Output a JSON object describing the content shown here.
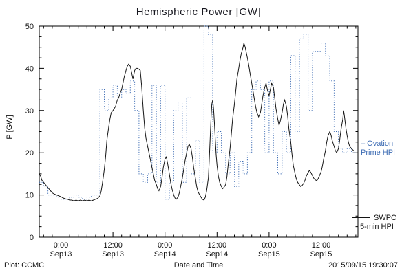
{
  "title": "Hemispheric Power [GW]",
  "footer": {
    "left": "Plot: CCMC",
    "timestamp": "2015/09/15 19:30:07"
  },
  "legend": {
    "ovation": {
      "line1": "– Ovation",
      "line2": "Prime HPI",
      "color": "#3d6cb4"
    },
    "swpc": {
      "line1": "SWPC",
      "line2": "5-min HPI",
      "color": "#141414"
    }
  },
  "chart_data": {
    "type": "line",
    "title": "Hemispheric Power [GW]",
    "xlabel": "Date and Time",
    "ylabel": "P [GW]",
    "x_unit": "hours since 2015-09-13 00:00 UT",
    "xlim": [
      -5,
      68.5
    ],
    "ylim": [
      0,
      50
    ],
    "yticks": [
      0,
      10,
      20,
      30,
      40,
      50
    ],
    "x_minor_step": 2,
    "y_minor_step": 2.5,
    "grid": false,
    "legend_position": "right",
    "xticks": [
      {
        "t": 0,
        "time": "0:00",
        "date": "Sep13"
      },
      {
        "t": 12,
        "time": "12:00",
        "date": "Sep13"
      },
      {
        "t": 24,
        "time": "0:00",
        "date": "Sep14"
      },
      {
        "t": 36,
        "time": "12:00",
        "date": "Sep14"
      },
      {
        "t": 48,
        "time": "0:00",
        "date": "Sep15"
      },
      {
        "t": 60,
        "time": "12:00",
        "date": "Sep15"
      }
    ],
    "series": [
      {
        "name": "Ovation Prime HPI",
        "color": "#3d6cb4",
        "line_style": "dotted",
        "step": true,
        "points": [
          [
            -5,
            13
          ],
          [
            -4,
            12
          ],
          [
            -3,
            10
          ],
          [
            -2,
            10
          ],
          [
            -1,
            9.5
          ],
          [
            0,
            9
          ],
          [
            1,
            9
          ],
          [
            2,
            9.5
          ],
          [
            3,
            10
          ],
          [
            4,
            9.5
          ],
          [
            5,
            9
          ],
          [
            6,
            9.5
          ],
          [
            7,
            10
          ],
          [
            8,
            10
          ],
          [
            9,
            35
          ],
          [
            10,
            30
          ],
          [
            11,
            33
          ],
          [
            12,
            36
          ],
          [
            13,
            33
          ],
          [
            14,
            35
          ],
          [
            15,
            34
          ],
          [
            16,
            37
          ],
          [
            17,
            30
          ],
          [
            18,
            15
          ],
          [
            19,
            13
          ],
          [
            20,
            15
          ],
          [
            21,
            36
          ],
          [
            22,
            13
          ],
          [
            23,
            36
          ],
          [
            24,
            9
          ],
          [
            25,
            13
          ],
          [
            26,
            30
          ],
          [
            27,
            32
          ],
          [
            28,
            13
          ],
          [
            29,
            33
          ],
          [
            30,
            15
          ],
          [
            31,
            23
          ],
          [
            32,
            13
          ],
          [
            33,
            50
          ],
          [
            34,
            48
          ],
          [
            35,
            20
          ],
          [
            36,
            25
          ],
          [
            37,
            20
          ],
          [
            38,
            15
          ],
          [
            39,
            20
          ],
          [
            40,
            12
          ],
          [
            41,
            18
          ],
          [
            42,
            15
          ],
          [
            43,
            20
          ],
          [
            44,
            35
          ],
          [
            45,
            37
          ],
          [
            46,
            35
          ],
          [
            47,
            20
          ],
          [
            48,
            37
          ],
          [
            49,
            20
          ],
          [
            50,
            15
          ],
          [
            51,
            25
          ],
          [
            52,
            20
          ],
          [
            53,
            43
          ],
          [
            54,
            25
          ],
          [
            55,
            47
          ],
          [
            56,
            48
          ],
          [
            57,
            30
          ],
          [
            58,
            44
          ],
          [
            59,
            44
          ],
          [
            60,
            46
          ],
          [
            61,
            43
          ],
          [
            62,
            37
          ],
          [
            63,
            25
          ],
          [
            64,
            21
          ],
          [
            65,
            20
          ],
          [
            66,
            21
          ],
          [
            67,
            20
          ]
        ]
      },
      {
        "name": "SWPC 5-min HPI",
        "color": "#141414",
        "line_style": "solid",
        "step": false,
        "points": [
          [
            -5,
            15
          ],
          [
            -4.7,
            14.5
          ],
          [
            -4.4,
            13.5
          ],
          [
            -4,
            13
          ],
          [
            -3.6,
            12.5
          ],
          [
            -3.2,
            12
          ],
          [
            -2.8,
            11.5
          ],
          [
            -2.4,
            11
          ],
          [
            -2,
            10.5
          ],
          [
            -1.5,
            10.2
          ],
          [
            -1,
            10
          ],
          [
            -0.5,
            9.8
          ],
          [
            0,
            9.6
          ],
          [
            0.5,
            9.3
          ],
          [
            1,
            9.1
          ],
          [
            1.5,
            9
          ],
          [
            2,
            8.8
          ],
          [
            2.5,
            8.8
          ],
          [
            3,
            8.6
          ],
          [
            3.5,
            8.8
          ],
          [
            4,
            8.6
          ],
          [
            4.5,
            8.8
          ],
          [
            5,
            8.6
          ],
          [
            5.5,
            8.8
          ],
          [
            6,
            8.6
          ],
          [
            6.5,
            8.8
          ],
          [
            7,
            8.6
          ],
          [
            7.5,
            8.8
          ],
          [
            8,
            9
          ],
          [
            8.5,
            9.2
          ],
          [
            9,
            9.8
          ],
          [
            9.3,
            11
          ],
          [
            9.6,
            13
          ],
          [
            10,
            16
          ],
          [
            10.3,
            19
          ],
          [
            10.6,
            23
          ],
          [
            11,
            26
          ],
          [
            11.3,
            28
          ],
          [
            11.6,
            29.5
          ],
          [
            12,
            30
          ],
          [
            12.3,
            30.5
          ],
          [
            12.6,
            31
          ],
          [
            13,
            32.5
          ],
          [
            13.3,
            33
          ],
          [
            13.6,
            34
          ],
          [
            14,
            35
          ],
          [
            14.3,
            36.5
          ],
          [
            14.6,
            38
          ],
          [
            15,
            39.5
          ],
          [
            15.3,
            40.5
          ],
          [
            15.6,
            41
          ],
          [
            16,
            40.5
          ],
          [
            16.3,
            39
          ],
          [
            16.6,
            37.5
          ],
          [
            17,
            39.5
          ],
          [
            17.3,
            40
          ],
          [
            17.6,
            40
          ],
          [
            18,
            39.8
          ],
          [
            18.3,
            39.5
          ],
          [
            18.6,
            36
          ],
          [
            19,
            30
          ],
          [
            19.3,
            26
          ],
          [
            19.6,
            23.5
          ],
          [
            20,
            21.5
          ],
          [
            20.3,
            20
          ],
          [
            20.6,
            18.5
          ],
          [
            21,
            16.5
          ],
          [
            21.3,
            15
          ],
          [
            21.6,
            13.5
          ],
          [
            22,
            12.5
          ],
          [
            22.3,
            11.5
          ],
          [
            22.6,
            11
          ],
          [
            23,
            12
          ],
          [
            23.3,
            14
          ],
          [
            23.6,
            16.5
          ],
          [
            24,
            18.5
          ],
          [
            24.3,
            19
          ],
          [
            24.6,
            17.5
          ],
          [
            25,
            15
          ],
          [
            25.3,
            13
          ],
          [
            25.6,
            11.5
          ],
          [
            26,
            10
          ],
          [
            26.3,
            9.3
          ],
          [
            26.6,
            9
          ],
          [
            27,
            9.5
          ],
          [
            27.3,
            10.5
          ],
          [
            27.6,
            12
          ],
          [
            28,
            14
          ],
          [
            28.3,
            16
          ],
          [
            28.6,
            18
          ],
          [
            29,
            20
          ],
          [
            29.3,
            21.5
          ],
          [
            29.6,
            22
          ],
          [
            30,
            21
          ],
          [
            30.3,
            19
          ],
          [
            30.6,
            16.5
          ],
          [
            31,
            14
          ],
          [
            31.3,
            12
          ],
          [
            31.6,
            10.8
          ],
          [
            32,
            10
          ],
          [
            32.3,
            9.5
          ],
          [
            32.6,
            9
          ],
          [
            33,
            8.8
          ],
          [
            33.3,
            9.5
          ],
          [
            33.6,
            11
          ],
          [
            34,
            14
          ],
          [
            34.2,
            18
          ],
          [
            34.4,
            23
          ],
          [
            34.6,
            28
          ],
          [
            34.8,
            31.5
          ],
          [
            35,
            32.5
          ],
          [
            35.2,
            30.5
          ],
          [
            35.4,
            27
          ],
          [
            35.6,
            23
          ],
          [
            35.8,
            19.5
          ],
          [
            36,
            17
          ],
          [
            36.3,
            14.5
          ],
          [
            36.6,
            13
          ],
          [
            37,
            12
          ],
          [
            37.3,
            11.5
          ],
          [
            37.6,
            11.8
          ],
          [
            38,
            12.5
          ],
          [
            38.3,
            14.5
          ],
          [
            38.6,
            17.5
          ],
          [
            39,
            21
          ],
          [
            39.3,
            24.5
          ],
          [
            39.6,
            28
          ],
          [
            40,
            31.5
          ],
          [
            40.3,
            34.5
          ],
          [
            40.6,
            37.5
          ],
          [
            41,
            40
          ],
          [
            41.3,
            42
          ],
          [
            41.6,
            43.5
          ],
          [
            42,
            45
          ],
          [
            42.2,
            46
          ],
          [
            42.5,
            45
          ],
          [
            42.8,
            43.5
          ],
          [
            43.2,
            41.5
          ],
          [
            43.6,
            39
          ],
          [
            44,
            36.5
          ],
          [
            44.4,
            34
          ],
          [
            44.8,
            31.5
          ],
          [
            45.2,
            29.5
          ],
          [
            45.6,
            28.5
          ],
          [
            46,
            29.5
          ],
          [
            46.3,
            31.5
          ],
          [
            46.6,
            33.5
          ],
          [
            47,
            35.5
          ],
          [
            47.3,
            36.5
          ],
          [
            47.6,
            35
          ],
          [
            48,
            33.5
          ],
          [
            48.3,
            35
          ],
          [
            48.6,
            36.5
          ],
          [
            49,
            35.5
          ],
          [
            49.3,
            33
          ],
          [
            49.6,
            30.5
          ],
          [
            50,
            28
          ],
          [
            50.3,
            26.5
          ],
          [
            50.6,
            27.5
          ],
          [
            51,
            29.5
          ],
          [
            51.3,
            31.5
          ],
          [
            51.6,
            32.5
          ],
          [
            52,
            31
          ],
          [
            52.3,
            28.5
          ],
          [
            52.6,
            25.5
          ],
          [
            53,
            22.5
          ],
          [
            53.3,
            19.5
          ],
          [
            53.6,
            17
          ],
          [
            54,
            15
          ],
          [
            54.3,
            13.8
          ],
          [
            54.6,
            13
          ],
          [
            55,
            12.4
          ],
          [
            55.3,
            12
          ],
          [
            55.6,
            12.2
          ],
          [
            56,
            12.8
          ],
          [
            56.3,
            13.5
          ],
          [
            56.6,
            14.5
          ],
          [
            57,
            15.3
          ],
          [
            57.3,
            15.8
          ],
          [
            57.6,
            15.4
          ],
          [
            58,
            14.6
          ],
          [
            58.3,
            14
          ],
          [
            58.6,
            13.6
          ],
          [
            59,
            13.4
          ],
          [
            59.3,
            13.8
          ],
          [
            59.6,
            14.5
          ],
          [
            60,
            15.5
          ],
          [
            60.3,
            16.8
          ],
          [
            60.6,
            18.5
          ],
          [
            61,
            20.5
          ],
          [
            61.3,
            22.5
          ],
          [
            61.6,
            24
          ],
          [
            62,
            25
          ],
          [
            62.3,
            24.2
          ],
          [
            62.6,
            22.8
          ],
          [
            63,
            21.5
          ],
          [
            63.3,
            20.5
          ],
          [
            63.6,
            20
          ],
          [
            64,
            21
          ],
          [
            64.3,
            23
          ],
          [
            64.6,
            25.5
          ],
          [
            65,
            28
          ],
          [
            65.2,
            30
          ],
          [
            65.4,
            28.5
          ],
          [
            65.7,
            26
          ],
          [
            66,
            24
          ],
          [
            66.3,
            22.5
          ],
          [
            66.6,
            21.5
          ],
          [
            67,
            21
          ],
          [
            67.5,
            20.5
          ]
        ]
      }
    ]
  }
}
